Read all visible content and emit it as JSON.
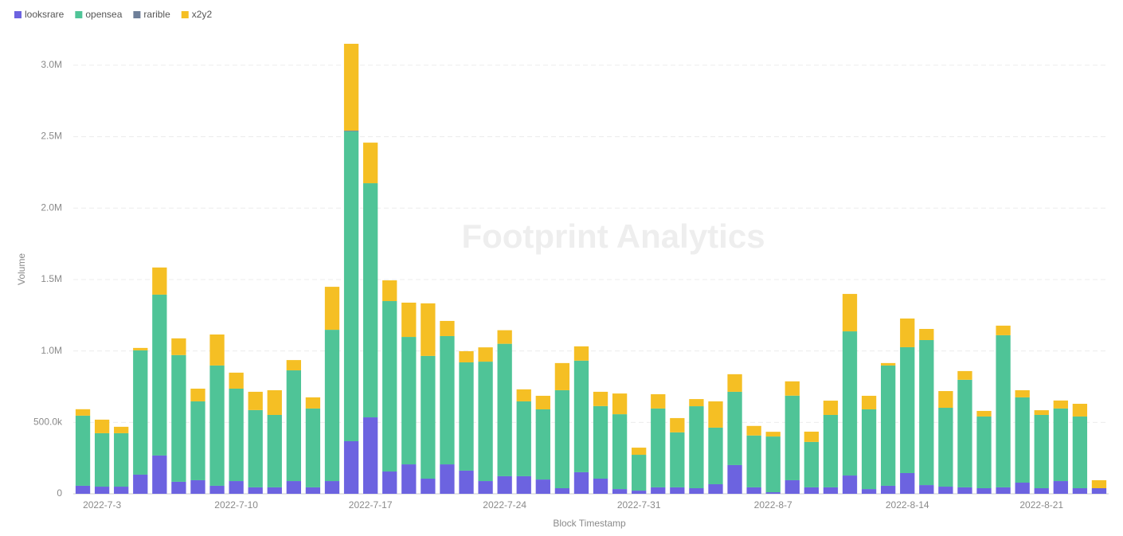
{
  "chart_data": {
    "type": "stacked-bar",
    "x_label": "Block Timestamp",
    "y_label": "Volume",
    "watermark": "Footprint Analytics",
    "categories": [
      null,
      "2022-7-3",
      null,
      null,
      null,
      null,
      null,
      null,
      "2022-7-10",
      null,
      null,
      null,
      null,
      null,
      null,
      "2022-7-17",
      null,
      null,
      null,
      null,
      null,
      null,
      "2022-7-24",
      null,
      null,
      null,
      null,
      null,
      null,
      "2022-7-31",
      null,
      null,
      null,
      null,
      null,
      null,
      "2022-8-7",
      null,
      null,
      null,
      null,
      null,
      null,
      "2022-8-14",
      null,
      null,
      null,
      null,
      null,
      null,
      "2022-8-21",
      null,
      null,
      null
    ],
    "series": [
      {
        "name": "looksrare",
        "color": "#6c63e0",
        "values": [
          56000,
          50000,
          50000,
          134000,
          268000,
          84000,
          95000,
          56000,
          89000,
          45000,
          45000,
          89000,
          45000,
          89000,
          368000,
          535000,
          156000,
          206000,
          106000,
          206000,
          162000,
          89000,
          123000,
          123000,
          100000,
          39000,
          151000,
          106000,
          33000,
          22000,
          45000,
          45000,
          39000,
          67000,
          201000,
          45000,
          11000,
          95000,
          45000,
          45000,
          128000,
          33000,
          56000,
          145000,
          61000,
          50000,
          45000,
          39000,
          45000,
          78000,
          39000,
          89000,
          39000,
          39000
        ]
      },
      {
        "name": "opensea",
        "color": "#4fc497",
        "values": [
          491000,
          374000,
          374000,
          870000,
          1126000,
          887000,
          552000,
          842000,
          647000,
          541000,
          507000,
          775000,
          552000,
          1059000,
          2169000,
          1639000,
          1193000,
          892000,
          859000,
          898000,
          758000,
          836000,
          927000,
          524000,
          491000,
          686000,
          781000,
          508000,
          524000,
          251000,
          552000,
          385000,
          574000,
          396000,
          513000,
          363000,
          390000,
          592000,
          318000,
          507000,
          1009000,
          558000,
          842000,
          881000,
          1015000,
          552000,
          753000,
          502000,
          1065000,
          597000,
          513000,
          508000,
          502000,
          0
        ]
      },
      {
        "name": "rarible",
        "color": "#6e7f99",
        "values": [
          0,
          0,
          0,
          0,
          0,
          0,
          0,
          0,
          0,
          0,
          0,
          0,
          0,
          0,
          5000,
          0,
          0,
          0,
          0,
          0,
          0,
          0,
          0,
          0,
          0,
          0,
          0,
          0,
          0,
          0,
          0,
          0,
          0,
          0,
          0,
          0,
          0,
          0,
          0,
          0,
          0,
          0,
          0,
          0,
          0,
          0,
          0,
          0,
          0,
          0,
          0,
          0,
          0,
          0
        ]
      },
      {
        "name": "x2y2",
        "color": "#f5bf24",
        "values": [
          45000,
          95000,
          45000,
          17000,
          190000,
          117000,
          89000,
          217000,
          112000,
          128000,
          173000,
          72000,
          78000,
          301000,
          608000,
          284000,
          145000,
          240000,
          368000,
          106000,
          78000,
          100000,
          95000,
          84000,
          95000,
          190000,
          100000,
          100000,
          145000,
          50000,
          100000,
          100000,
          50000,
          184000,
          123000,
          67000,
          33000,
          100000,
          72000,
          100000,
          262000,
          95000,
          17000,
          201000,
          78000,
          117000,
          61000,
          39000,
          67000,
          50000,
          33000,
          56000,
          89000,
          56000
        ]
      }
    ],
    "ylim": [
      0,
      3200000
    ],
    "yticks": [
      0,
      {
        "value": 500000,
        "label": "500.0k"
      },
      {
        "value": 1000000,
        "label": "1.0M"
      },
      {
        "value": 1500000,
        "label": "1.5M"
      },
      {
        "value": 2000000,
        "label": "2.0M"
      },
      {
        "value": 2500000,
        "label": "2.5M"
      },
      {
        "value": 3000000,
        "label": "3.0M"
      }
    ],
    "grid": true
  }
}
